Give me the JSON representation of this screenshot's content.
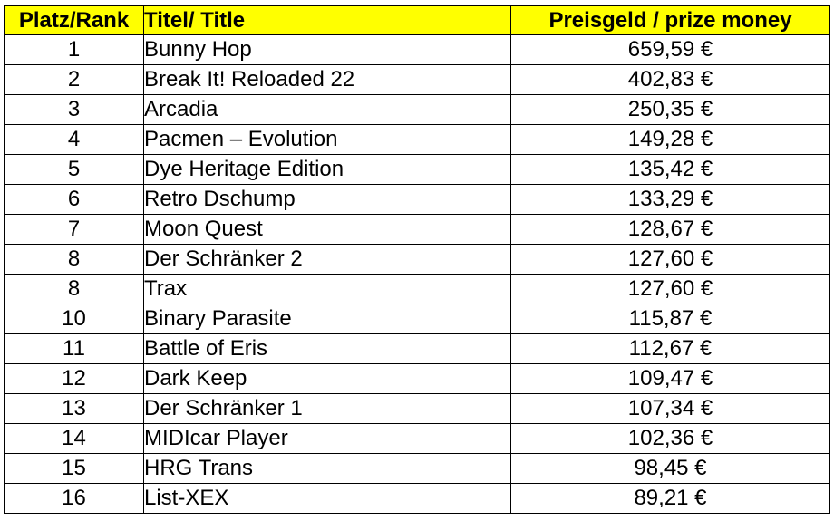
{
  "header": {
    "rank": "Platz/Rank",
    "title": "Titel/ Title",
    "prize": "Preisgeld / prize money",
    "background_color": "#ffff00"
  },
  "rows": [
    {
      "rank": "1",
      "title": "Bunny Hop",
      "prize": "659,59 €"
    },
    {
      "rank": "2",
      "title": "Break It! Reloaded 22",
      "prize": "402,83 €"
    },
    {
      "rank": "3",
      "title": "Arcadia",
      "prize": "250,35 €"
    },
    {
      "rank": "4",
      "title": "Pacmen – Evolution",
      "prize": "149,28 €"
    },
    {
      "rank": "5",
      "title": "Dye Heritage Edition",
      "prize": "135,42 €"
    },
    {
      "rank": "6",
      "title": "Retro Dschump",
      "prize": "133,29 €"
    },
    {
      "rank": "7",
      "title": "Moon Quest",
      "prize": "128,67 €"
    },
    {
      "rank": "8",
      "title": "Der Schränker 2",
      "prize": "127,60 €"
    },
    {
      "rank": "8",
      "title": "Trax",
      "prize": "127,60 €"
    },
    {
      "rank": "10",
      "title": "Binary Parasite",
      "prize": "115,87 €"
    },
    {
      "rank": "11",
      "title": "Battle of Eris",
      "prize": "112,67 €"
    },
    {
      "rank": "12",
      "title": "Dark Keep",
      "prize": "109,47 €"
    },
    {
      "rank": "13",
      "title": "Der Schränker 1",
      "prize": "107,34 €"
    },
    {
      "rank": "14",
      "title": "MIDIcar Player",
      "prize": "102,36 €"
    },
    {
      "rank": "15",
      "title": "HRG Trans",
      "prize": "98,45 €"
    },
    {
      "rank": "16",
      "title": "List-XEX",
      "prize": "89,21 €"
    }
  ]
}
